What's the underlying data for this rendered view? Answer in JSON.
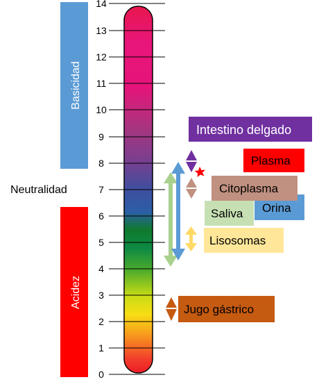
{
  "scale": {
    "ticks": [
      "0",
      "1",
      "2",
      "3",
      "4",
      "5",
      "6",
      "7",
      "8",
      "9",
      "10",
      "11",
      "12",
      "13",
      "14"
    ]
  },
  "labels": {
    "basicity": "Basicidad",
    "acidity": "Acidez",
    "neutrality": "Neutralidad"
  },
  "items": {
    "intestine": {
      "label": "Intestino delgado",
      "color": "#7030a0"
    },
    "plasma": {
      "label": "Plasma",
      "color": "#ff0000"
    },
    "cytoplasm": {
      "label": "Citoplasma",
      "color": "#c09080"
    },
    "saliva": {
      "label": "Saliva",
      "color": "#b7dba1"
    },
    "urine": {
      "label": "Orina",
      "color": "#5b9bd5"
    },
    "lysosomes": {
      "label": "Lisosomas",
      "color": "#ffd966"
    },
    "gastric": {
      "label": "Jugo gástrico",
      "color": "#c55a11"
    }
  },
  "colors": {
    "basicity_bar": "#5b9bd5",
    "acidity_bar": "#ff0000"
  }
}
